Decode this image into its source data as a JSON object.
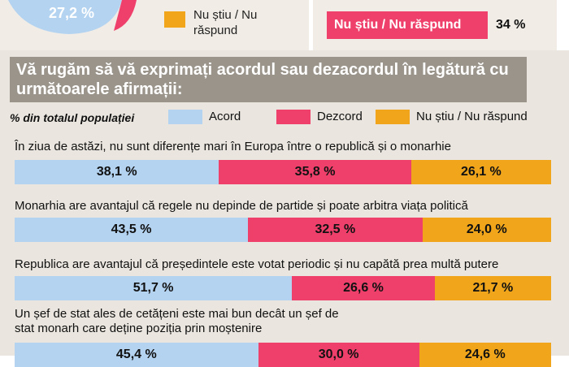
{
  "top": {
    "pie_label": "27,2 %",
    "legend_dont_know": "Nu știu / Nu răspund",
    "badge_label": "Nu știu / Nu răspund",
    "badge_pct": "34 %"
  },
  "chart_data": {
    "type": "bar",
    "stacked": true,
    "orientation": "horizontal",
    "title": "Vă rugăm să vă exprimați  acordul sau dezacordul în legătură cu următoarele afirmații:",
    "unit_note": "% din totalul populației",
    "legend_placement": "top",
    "colors": {
      "Acord": "#b4d3f1",
      "Dezcord": "#ef3f6b",
      "Nu știu / Nu răspund": "#f0a51b"
    },
    "series": [
      {
        "name": "Acord",
        "values": [
          38.1,
          43.5,
          51.7,
          45.4
        ]
      },
      {
        "name": "Dezcord",
        "values": [
          35.8,
          32.5,
          26.6,
          30.0
        ]
      },
      {
        "name": "Nu știu / Nu răspund",
        "values": [
          26.1,
          24.0,
          21.7,
          24.6
        ]
      }
    ],
    "categories": [
      "În ziua de astăzi, nu sunt diferențe mari în Europa între o republică și o monarhie",
      "Monarhia are avantajul că regele nu depinde de partide și poate arbitra viața politică",
      "Republica are avantajul că președintele este votat periodic și nu capătă prea multă putere",
      "Un șef de stat ales de cetățeni este mai bun decât un șef de stat monarh care deține poziția prin moștenire"
    ],
    "labels": [
      [
        "38,1 %",
        "35,8 %",
        "26,1 %"
      ],
      [
        "43,5 %",
        "32,5 %",
        "24,0 %"
      ],
      [
        "51,7 %",
        "26,6 %",
        "21,7 %"
      ],
      [
        "45,4 %",
        "30,0 %",
        "24,6 %"
      ]
    ]
  }
}
